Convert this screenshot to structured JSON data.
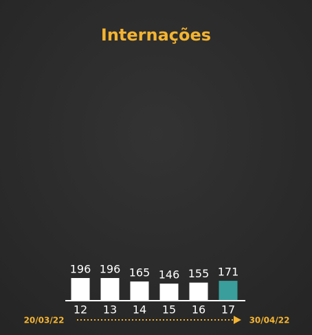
{
  "chart_data": {
    "type": "bar",
    "title": "Internações",
    "categories": [
      "12",
      "13",
      "14",
      "15",
      "16",
      "17"
    ],
    "values": [
      196,
      196,
      165,
      146,
      155,
      171
    ],
    "colors": [
      "#ffffff",
      "#ffffff",
      "#ffffff",
      "#ffffff",
      "#ffffff",
      "#3a9e9c"
    ],
    "annotations": [
      "20/03/22",
      "30/04/22"
    ]
  }
}
